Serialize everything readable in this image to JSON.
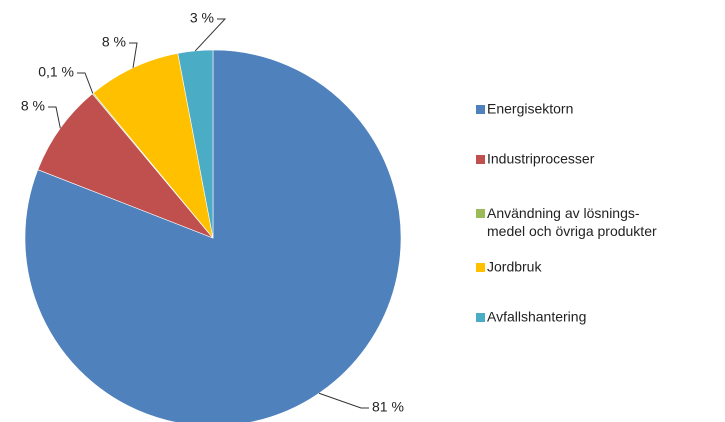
{
  "chart_data": {
    "type": "pie",
    "categories": [
      "Energisektorn",
      "Industriprocesser",
      "Användning av lösnings-\nmedel och övriga produkter",
      "Jordbruk",
      "Avfallshantering"
    ],
    "values": [
      81,
      8,
      0.1,
      8,
      3
    ],
    "value_labels": [
      "81 %",
      "8 %",
      "0,1 %",
      "8 %",
      "3 %"
    ],
    "colors": [
      "#4f81bd",
      "#c0504d",
      "#9bbb59",
      "#ffc000",
      "#4bacc6"
    ],
    "legend": "right"
  }
}
